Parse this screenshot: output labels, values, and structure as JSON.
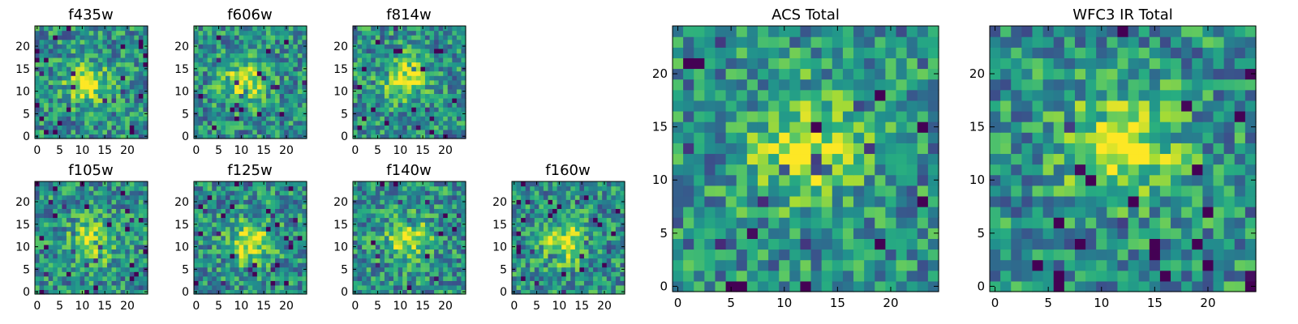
{
  "colors": {
    "colormap": "viridis",
    "frame": "#000000",
    "background": "#ffffff"
  },
  "chart_data": [
    {
      "type": "heatmap",
      "title": "f435w",
      "x_ticks": [
        "0",
        "5",
        "10",
        "15",
        "20"
      ],
      "y_ticks": [
        "0",
        "5",
        "10",
        "15",
        "20"
      ],
      "xlim": [
        -0.5,
        24.5
      ],
      "ylim": [
        -0.5,
        24.5
      ],
      "grid": false,
      "pixels": 25,
      "blob_center": [
        11,
        12
      ]
    },
    {
      "type": "heatmap",
      "title": "f606w",
      "x_ticks": [
        "0",
        "5",
        "10",
        "15",
        "20"
      ],
      "y_ticks": [
        "0",
        "5",
        "10",
        "15",
        "20"
      ],
      "xlim": [
        -0.5,
        24.5
      ],
      "ylim": [
        -0.5,
        24.5
      ],
      "grid": false,
      "pixels": 25,
      "blob_center": [
        11,
        12
      ]
    },
    {
      "type": "heatmap",
      "title": "f814w",
      "x_ticks": [
        "0",
        "5",
        "10",
        "15",
        "20"
      ],
      "y_ticks": [
        "0",
        "5",
        "10",
        "15",
        "20"
      ],
      "xlim": [
        -0.5,
        24.5
      ],
      "ylim": [
        -0.5,
        24.5
      ],
      "grid": false,
      "pixels": 25,
      "blob_center": [
        11,
        13
      ]
    },
    {
      "type": "heatmap",
      "title": "f105w",
      "x_ticks": [
        "0",
        "5",
        "10",
        "15",
        "20"
      ],
      "y_ticks": [
        "0",
        "5",
        "10",
        "15",
        "20"
      ],
      "xlim": [
        -0.5,
        24.5
      ],
      "ylim": [
        -0.5,
        24.5
      ],
      "grid": false,
      "pixels": 25,
      "blob_center": [
        12,
        11
      ]
    },
    {
      "type": "heatmap",
      "title": "f125w",
      "x_ticks": [
        "0",
        "5",
        "10",
        "15",
        "20"
      ],
      "y_ticks": [
        "0",
        "5",
        "10",
        "15",
        "20"
      ],
      "xlim": [
        -0.5,
        24.5
      ],
      "ylim": [
        -0.5,
        24.5
      ],
      "grid": false,
      "pixels": 25,
      "blob_center": [
        12,
        11
      ]
    },
    {
      "type": "heatmap",
      "title": "f140w",
      "x_ticks": [
        "0",
        "5",
        "10",
        "15",
        "20"
      ],
      "y_ticks": [
        "0",
        "5",
        "10",
        "15",
        "20"
      ],
      "xlim": [
        -0.5,
        24.5
      ],
      "ylim": [
        -0.5,
        24.5
      ],
      "grid": false,
      "pixels": 25,
      "blob_center": [
        12,
        12
      ]
    },
    {
      "type": "heatmap",
      "title": "f160w",
      "x_ticks": [
        "0",
        "5",
        "10",
        "15",
        "20"
      ],
      "y_ticks": [
        "0",
        "5",
        "10",
        "15",
        "20"
      ],
      "xlim": [
        -0.5,
        24.5
      ],
      "ylim": [
        -0.5,
        24.5
      ],
      "grid": false,
      "pixels": 25,
      "blob_center": [
        11,
        11
      ]
    },
    {
      "type": "heatmap",
      "title": "ACS Total",
      "x_ticks": [
        "0",
        "5",
        "10",
        "15",
        "20"
      ],
      "y_ticks": [
        "0",
        "5",
        "10",
        "15",
        "20"
      ],
      "xlim": [
        -0.5,
        24.5
      ],
      "ylim": [
        -0.5,
        24.5
      ],
      "grid": false,
      "pixels": 25,
      "blob_center": [
        12,
        13
      ]
    },
    {
      "type": "heatmap",
      "title": "WFC3 IR Total",
      "x_ticks": [
        "0",
        "5",
        "10",
        "15",
        "20"
      ],
      "y_ticks": [
        "0",
        "5",
        "10",
        "15",
        "20"
      ],
      "xlim": [
        -0.5,
        24.5
      ],
      "ylim": [
        -0.5,
        24.5
      ],
      "grid": false,
      "pixels": 25,
      "blob_center": [
        12,
        13
      ]
    }
  ]
}
